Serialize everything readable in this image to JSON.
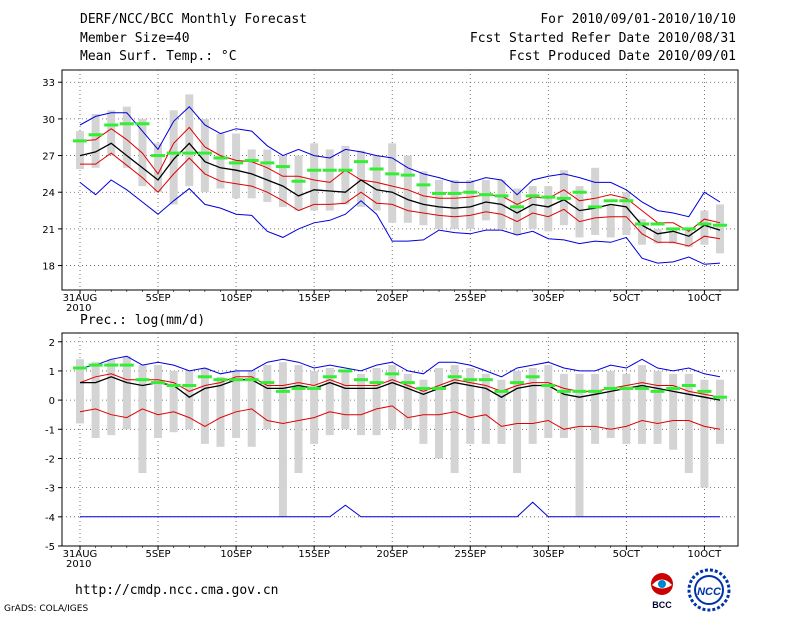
{
  "header": {
    "title": "DERF/NCC/BCC Monthly Forecast",
    "member_size": "Member Size=40",
    "variable": "Mean Surf. Temp.: °C",
    "period": "For 2010/09/01-2010/10/10",
    "refer_date": "Fcst Started Refer Date 2010/08/31",
    "produced_date": "Fcst Produced Date 2010/09/01"
  },
  "footer": {
    "url": "http://cmdp.ncc.cma.gov.cn",
    "grads": "GrADS: COLA/IGES",
    "logo_left_text": "BCC",
    "logo_right_text": "NCC"
  },
  "colors": {
    "mean": "#000000",
    "spread_inner": "#e00000",
    "spread_outer": "#0000dd",
    "climatology": "#33ee33",
    "box": "#d4d4d4"
  },
  "chart_data": [
    {
      "type": "line",
      "title": "Mean Surf. Temp.: °C",
      "ylim": [
        16,
        34
      ],
      "yticks": [
        18,
        21,
        24,
        27,
        30,
        33
      ],
      "xticks": [
        {
          "i": 0,
          "label": "31AUG",
          "sub": "2010"
        },
        {
          "i": 5,
          "label": "5SEP"
        },
        {
          "i": 10,
          "label": "10SEP"
        },
        {
          "i": 15,
          "label": "15SEP"
        },
        {
          "i": 20,
          "label": "20SEP"
        },
        {
          "i": 25,
          "label": "25SEP"
        },
        {
          "i": 30,
          "label": "30SEP"
        },
        {
          "i": 35,
          "label": "5OCT"
        },
        {
          "i": 40,
          "label": "10OCT"
        }
      ],
      "series": [
        {
          "name": "max",
          "values": [
            29.5,
            30.2,
            30.5,
            30.5,
            29.0,
            27.5,
            29.8,
            31.0,
            29.5,
            28.8,
            29.2,
            29.0,
            27.8,
            27.0,
            27.5,
            27.0,
            26.8,
            27.5,
            27.3,
            27.0,
            26.8,
            26.0,
            25.5,
            25.2,
            24.8,
            24.8,
            25.2,
            25.0,
            23.8,
            25.0,
            25.3,
            25.5,
            25.2,
            24.8,
            24.8,
            24.2,
            23.2,
            22.5,
            22.3,
            22.0,
            24.0,
            23.2
          ]
        },
        {
          "name": "p75",
          "values": [
            28.2,
            28.3,
            29.2,
            28.3,
            27.2,
            25.5,
            28.0,
            29.3,
            27.7,
            27.0,
            26.6,
            26.5,
            26.0,
            25.3,
            25.3,
            25.0,
            24.8,
            25.8,
            25.0,
            24.8,
            24.5,
            24.2,
            23.7,
            23.5,
            23.5,
            23.6,
            23.8,
            23.7,
            23.0,
            23.6,
            23.5,
            24.2,
            23.3,
            23.5,
            23.8,
            23.5,
            22.5,
            21.5,
            21.5,
            20.8,
            21.8,
            21.5
          ]
        },
        {
          "name": "mean",
          "values": [
            27.0,
            27.3,
            28.0,
            27.0,
            26.0,
            25.0,
            26.7,
            28.0,
            26.5,
            26.0,
            25.8,
            25.5,
            25.0,
            24.5,
            23.7,
            24.2,
            24.1,
            24.0,
            25.0,
            24.2,
            24.0,
            23.4,
            23.0,
            22.8,
            22.7,
            22.8,
            23.2,
            23.0,
            22.3,
            23.0,
            22.8,
            23.4,
            22.5,
            22.7,
            23.0,
            22.8,
            21.3,
            20.6,
            20.8,
            20.4,
            21.3,
            20.9
          ]
        },
        {
          "name": "p25",
          "values": [
            26.3,
            26.3,
            27.2,
            26.2,
            25.2,
            24.0,
            25.5,
            26.8,
            25.5,
            24.9,
            24.7,
            24.5,
            24.0,
            23.3,
            22.5,
            23.0,
            23.0,
            23.1,
            24.0,
            23.1,
            23.0,
            22.5,
            22.3,
            22.1,
            22.0,
            22.1,
            22.4,
            22.2,
            21.6,
            22.3,
            22.0,
            22.6,
            21.6,
            21.9,
            22.0,
            22.0,
            20.6,
            19.9,
            19.9,
            19.6,
            20.4,
            20.2
          ]
        },
        {
          "name": "min",
          "values": [
            24.8,
            23.8,
            25.0,
            24.2,
            23.2,
            22.2,
            23.3,
            24.3,
            23.0,
            22.7,
            22.2,
            22.1,
            20.8,
            20.3,
            21.0,
            21.5,
            21.7,
            22.2,
            23.3,
            22.2,
            20.0,
            20.0,
            20.1,
            20.9,
            20.7,
            20.6,
            20.9,
            20.9,
            20.5,
            20.8,
            20.2,
            20.1,
            19.8,
            20.0,
            19.9,
            20.3,
            18.6,
            18.2,
            18.3,
            18.7,
            18.1,
            18.2
          ]
        }
      ],
      "clim": [
        28.2,
        28.7,
        29.5,
        29.6,
        29.6,
        27.0,
        27.2,
        27.2,
        27.2,
        26.8,
        26.4,
        26.6,
        26.4,
        26.1,
        24.9,
        25.8,
        25.8,
        25.8,
        26.5,
        25.9,
        25.5,
        25.4,
        24.6,
        23.9,
        23.9,
        24.0,
        23.8,
        23.7,
        22.8,
        23.7,
        23.6,
        23.5,
        24.0,
        22.8,
        23.3,
        23.3,
        21.4,
        21.4,
        21.0,
        21.0,
        21.4,
        21.3
      ],
      "box_low": [
        25.9,
        26.0,
        27.0,
        26.0,
        24.5,
        24.0,
        23.0,
        24.5,
        24.0,
        24.3,
        23.5,
        23.5,
        23.2,
        22.8,
        22.5,
        22.5,
        22.5,
        23.0,
        22.8,
        22.5,
        21.5,
        21.5,
        21.3,
        21.0,
        21.0,
        21.0,
        21.7,
        21.0,
        20.5,
        21.0,
        20.8,
        21.3,
        20.3,
        20.5,
        20.3,
        20.5,
        19.7,
        19.8,
        19.8,
        19.5,
        19.7,
        19.0
      ],
      "box_high": [
        29.0,
        30.4,
        30.7,
        31.0,
        30.0,
        28.0,
        30.7,
        32.0,
        30.0,
        28.8,
        28.8,
        27.5,
        27.5,
        27.0,
        27.0,
        28.0,
        27.5,
        27.8,
        27.4,
        27.0,
        28.0,
        27.0,
        25.7,
        25.0,
        25.0,
        25.0,
        25.0,
        25.0,
        24.3,
        24.5,
        24.5,
        25.8,
        24.5,
        26.0,
        23.0,
        24.0,
        21.8,
        21.0,
        21.0,
        21.0,
        22.5,
        23.0
      ]
    },
    {
      "type": "line",
      "title": "Prec.: log(mm/d)",
      "ylim": [
        -5,
        2.3
      ],
      "yticks": [
        -5,
        -4,
        -3,
        -2,
        -1,
        0,
        1,
        2
      ],
      "xticks": [
        {
          "i": 0,
          "label": "31AUG",
          "sub": "2010"
        },
        {
          "i": 5,
          "label": "5SEP"
        },
        {
          "i": 10,
          "label": "10SEP"
        },
        {
          "i": 15,
          "label": "15SEP"
        },
        {
          "i": 20,
          "label": "20SEP"
        },
        {
          "i": 25,
          "label": "25SEP"
        },
        {
          "i": 30,
          "label": "30SEP"
        },
        {
          "i": 35,
          "label": "5OCT"
        },
        {
          "i": 40,
          "label": "10OCT"
        }
      ],
      "series": [
        {
          "name": "max",
          "values": [
            1.1,
            1.2,
            1.4,
            1.5,
            1.2,
            1.3,
            1.2,
            1.0,
            1.1,
            0.9,
            1.0,
            1.0,
            1.3,
            1.4,
            1.3,
            1.1,
            1.2,
            1.1,
            1.0,
            1.2,
            1.3,
            1.0,
            0.9,
            1.3,
            1.3,
            1.2,
            1.0,
            0.8,
            1.1,
            1.2,
            1.3,
            1.1,
            1.0,
            1.0,
            1.2,
            1.1,
            1.4,
            1.1,
            1.0,
            1.1,
            0.9,
            0.8
          ]
        },
        {
          "name": "p75",
          "values": [
            0.6,
            0.8,
            0.9,
            0.7,
            0.7,
            0.7,
            0.6,
            0.3,
            0.5,
            0.6,
            0.8,
            0.8,
            0.5,
            0.5,
            0.6,
            0.5,
            0.7,
            0.5,
            0.5,
            0.5,
            0.7,
            0.5,
            0.3,
            0.5,
            0.7,
            0.6,
            0.5,
            0.3,
            0.5,
            0.6,
            0.6,
            0.4,
            0.3,
            0.3,
            0.4,
            0.5,
            0.6,
            0.5,
            0.5,
            0.3,
            0.2,
            0.1
          ]
        },
        {
          "name": "mean",
          "values": [
            0.6,
            0.6,
            0.8,
            0.6,
            0.5,
            0.6,
            0.5,
            0.1,
            0.4,
            0.5,
            0.7,
            0.7,
            0.4,
            0.4,
            0.5,
            0.4,
            0.6,
            0.4,
            0.4,
            0.4,
            0.6,
            0.4,
            0.2,
            0.4,
            0.6,
            0.5,
            0.4,
            0.1,
            0.4,
            0.5,
            0.5,
            0.2,
            0.1,
            0.2,
            0.3,
            0.4,
            0.5,
            0.4,
            0.3,
            0.2,
            0.1,
            0.0
          ]
        },
        {
          "name": "p25",
          "values": [
            -0.4,
            -0.3,
            -0.5,
            -0.6,
            -0.3,
            -0.5,
            -0.4,
            -0.6,
            -0.9,
            -0.6,
            -0.4,
            -0.3,
            -0.7,
            -0.8,
            -0.7,
            -0.6,
            -0.4,
            -0.5,
            -0.5,
            -0.3,
            -0.2,
            -0.6,
            -0.5,
            -0.5,
            -0.4,
            -0.6,
            -0.5,
            -0.9,
            -0.8,
            -0.8,
            -0.7,
            -1.0,
            -0.9,
            -0.9,
            -1.0,
            -0.9,
            -0.7,
            -0.8,
            -0.7,
            -0.7,
            -0.9,
            -1.0
          ]
        },
        {
          "name": "min",
          "values": [
            -4,
            -4,
            -4,
            -4,
            -4,
            -4,
            -4,
            -4,
            -4,
            -4,
            -4,
            -4,
            -4,
            -4,
            -4,
            -4,
            -4,
            -3.6,
            -4,
            -4,
            -4,
            -4,
            -4,
            -4,
            -4,
            -4,
            -4,
            -4,
            -4,
            -3.5,
            -4,
            -4,
            -4,
            -4,
            -4,
            -4,
            -4,
            -4,
            -4,
            -4,
            -4,
            -4
          ]
        }
      ],
      "clim": [
        1.1,
        1.2,
        1.2,
        1.2,
        0.7,
        0.6,
        0.5,
        0.5,
        0.8,
        0.7,
        0.7,
        0.7,
        0.6,
        0.3,
        0.4,
        0.4,
        0.8,
        1.0,
        0.7,
        0.6,
        0.9,
        0.6,
        0.4,
        0.4,
        0.8,
        0.7,
        0.7,
        0.3,
        0.6,
        0.8,
        0.5,
        0.3,
        0.3,
        0.3,
        0.4,
        0.4,
        0.4,
        0.3,
        0.4,
        0.5,
        0.3,
        0.1
      ],
      "box_low": [
        -0.8,
        -1.3,
        -1.2,
        -1.0,
        -2.5,
        -1.3,
        -1.1,
        -1.0,
        -1.5,
        -1.6,
        -1.3,
        -1.6,
        -1.0,
        -4.0,
        -2.5,
        -1.5,
        -1.2,
        -1.0,
        -1.2,
        -1.2,
        -1.0,
        -1.0,
        -1.5,
        -2.0,
        -2.5,
        -1.5,
        -1.5,
        -1.5,
        -2.5,
        -1.5,
        -1.3,
        -1.3,
        -4.0,
        -1.5,
        -1.3,
        -1.5,
        -1.5,
        -1.5,
        -1.7,
        -2.5,
        -3.0,
        -1.5
      ],
      "box_high": [
        1.4,
        1.3,
        1.4,
        1.5,
        1.2,
        1.2,
        1.0,
        1.0,
        1.1,
        0.8,
        1.0,
        1.0,
        1.2,
        1.3,
        1.2,
        1.0,
        1.1,
        1.0,
        0.9,
        1.1,
        1.2,
        0.9,
        0.7,
        1.1,
        1.2,
        1.1,
        0.9,
        0.7,
        1.0,
        1.1,
        1.2,
        0.9,
        0.9,
        0.9,
        1.0,
        0.9,
        1.2,
        1.0,
        0.9,
        0.9,
        0.7,
        0.7
      ]
    }
  ]
}
